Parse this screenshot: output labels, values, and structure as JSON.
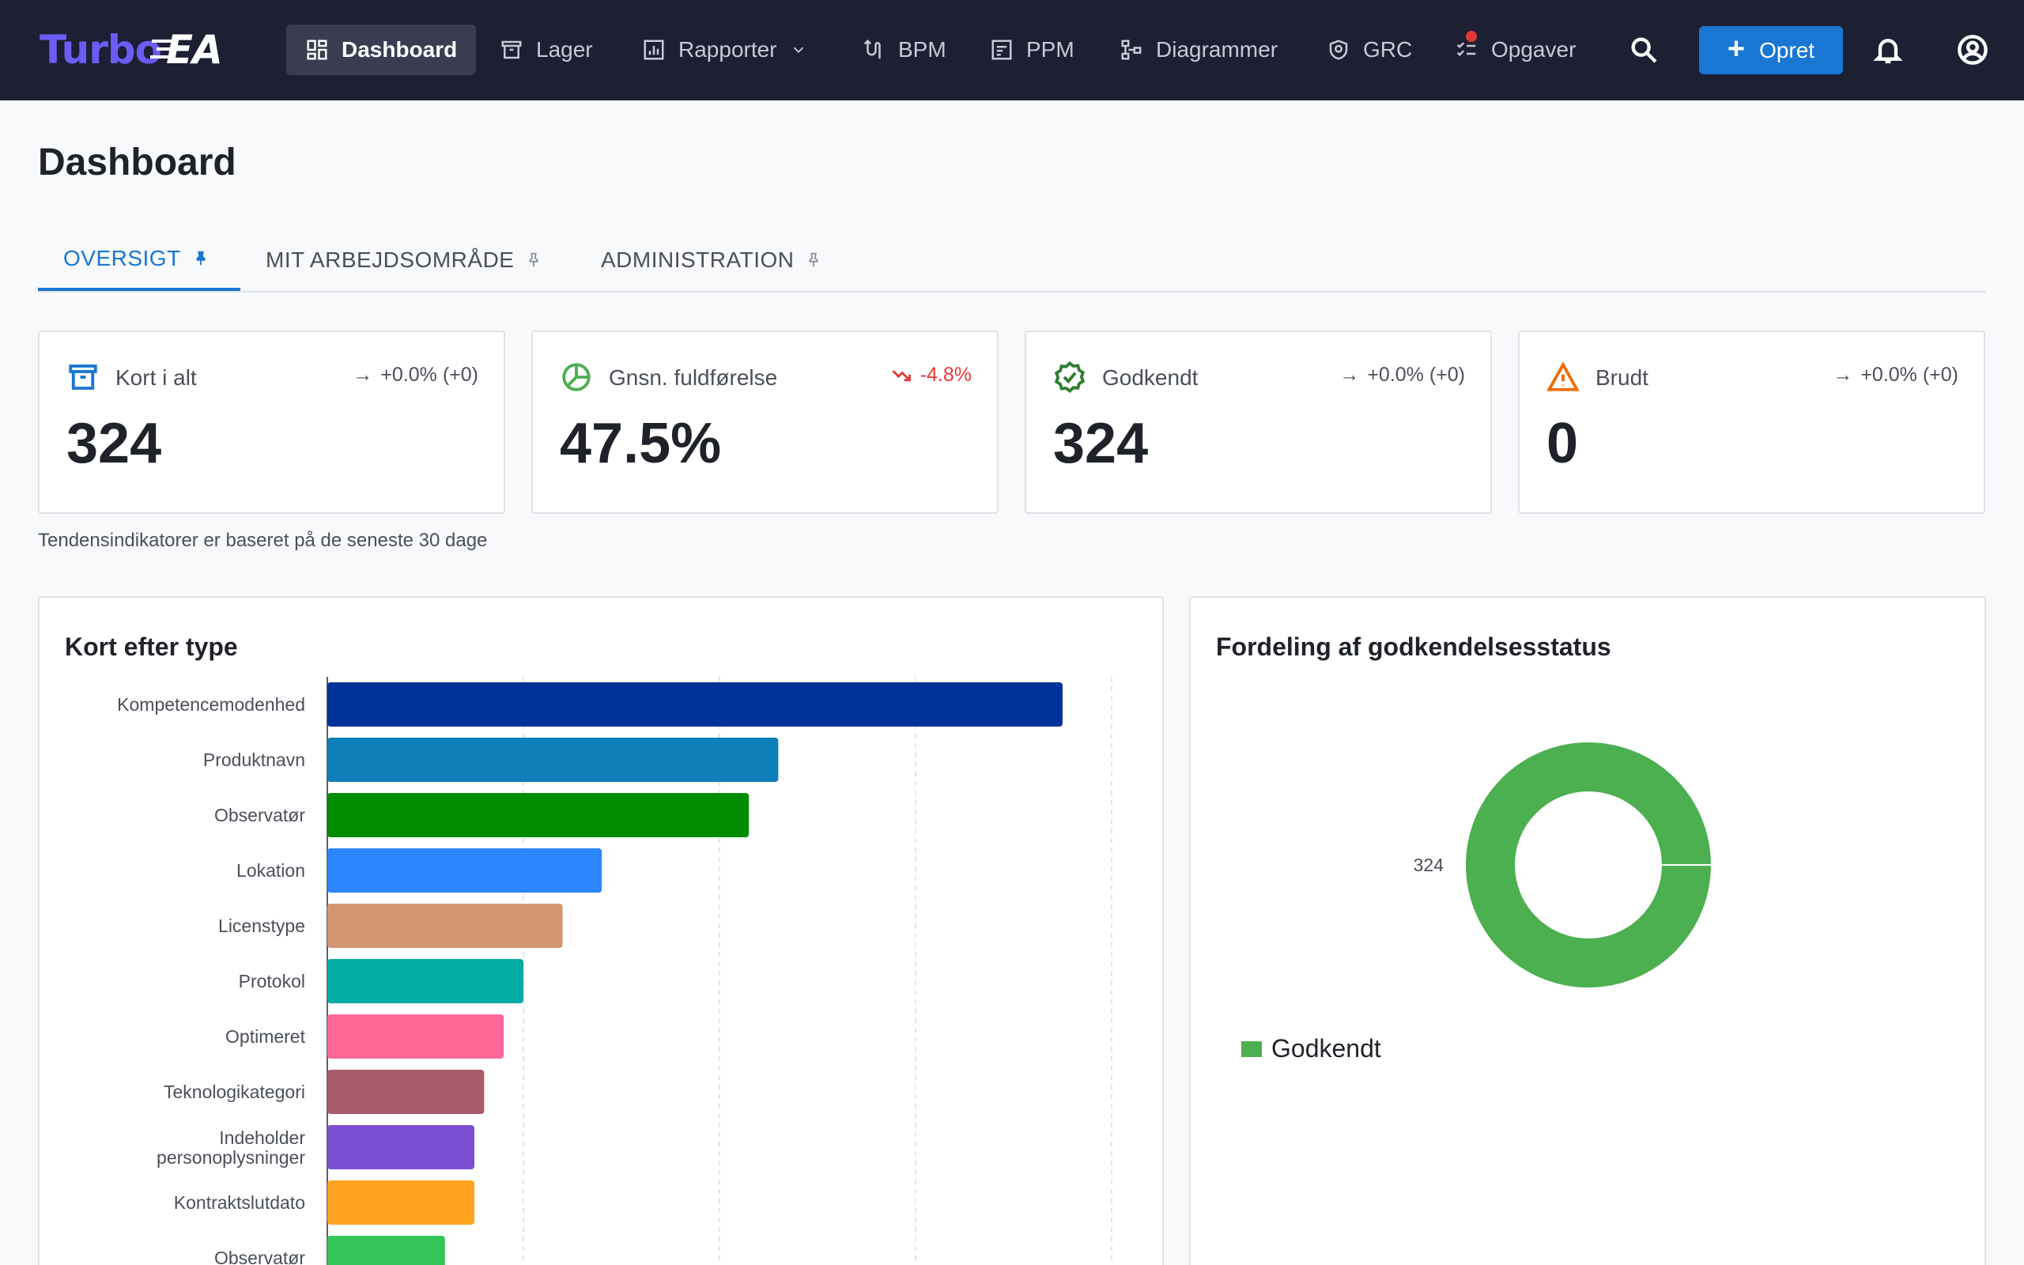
{
  "brand": {
    "part1": "Turbo",
    "part2": "EA"
  },
  "nav": {
    "items": [
      {
        "label": "Dashboard",
        "icon": "dashboard-icon",
        "active": true
      },
      {
        "label": "Lager",
        "icon": "archive-icon"
      },
      {
        "label": "Rapporter",
        "icon": "report-icon"
      },
      {
        "label": "BPM",
        "icon": "process-icon"
      },
      {
        "label": "PPM",
        "icon": "portfolio-icon"
      },
      {
        "label": "Diagrammer",
        "icon": "diagram-icon"
      },
      {
        "label": "GRC",
        "icon": "shield-icon"
      },
      {
        "label": "Opgaver",
        "icon": "tasks-icon"
      }
    ],
    "create_label": "Opret"
  },
  "page": {
    "title": "Dashboard"
  },
  "tabs": [
    {
      "label": "OVERSIGT",
      "active": true
    },
    {
      "label": "MIT ARBEJDSOMRÅDE",
      "active": false
    },
    {
      "label": "ADMINISTRATION",
      "active": false
    }
  ],
  "kpis": [
    {
      "label": "Kort i alt",
      "value": "324",
      "trend": "+0.0% (+0)",
      "trend_dir": "flat",
      "icon": "archive-icon",
      "color": "#1976d2"
    },
    {
      "label": "Gnsn. fuldførelse",
      "value": "47.5%",
      "trend": "-4.8%",
      "trend_dir": "down",
      "icon": "pie-icon",
      "color": "#4caf50"
    },
    {
      "label": "Godkendt",
      "value": "324",
      "trend": "+0.0% (+0)",
      "trend_dir": "flat",
      "icon": "verified-icon",
      "color": "#2e7d32"
    },
    {
      "label": "Brudt",
      "value": "0",
      "trend": "+0.0% (+0)",
      "trend_dir": "flat",
      "icon": "warning-icon",
      "color": "#ef6c00"
    }
  ],
  "trend_note": "Tendensindikatorer er baseret på de seneste 30 dage",
  "panels": {
    "bar_title": "Kort efter type",
    "donut_title": "Fordeling af godkendelsesstatus"
  },
  "chart_data": [
    {
      "type": "bar",
      "orientation": "horizontal",
      "title": "Kort efter type",
      "categories": [
        "Kompetencemodenhed",
        "Produktnavn",
        "Observatør",
        "Lokation",
        "Licenstype",
        "Protokol",
        "Optimeret",
        "Teknologikategori",
        "Indeholder personoplysninger",
        "Kontraktslutdato",
        "Observatør"
      ],
      "values": [
        75,
        46,
        43,
        28,
        24,
        20,
        18,
        16,
        15,
        15,
        12
      ],
      "colors": [
        "#003399",
        "#0e7fb8",
        "#008c00",
        "#2b86ff",
        "#d29672",
        "#04ada3",
        "#ff6997",
        "#a85a6b",
        "#7a4fd0",
        "#ffa21f",
        "#35c75a"
      ],
      "xlim": [
        0,
        80
      ],
      "grid": true
    },
    {
      "type": "pie",
      "title": "Fordeling af godkendelsesstatus",
      "donut": true,
      "categories": [
        "Godkendt"
      ],
      "values": [
        324
      ],
      "colors": [
        "#4caf50"
      ],
      "legend": "bottom-left"
    }
  ]
}
